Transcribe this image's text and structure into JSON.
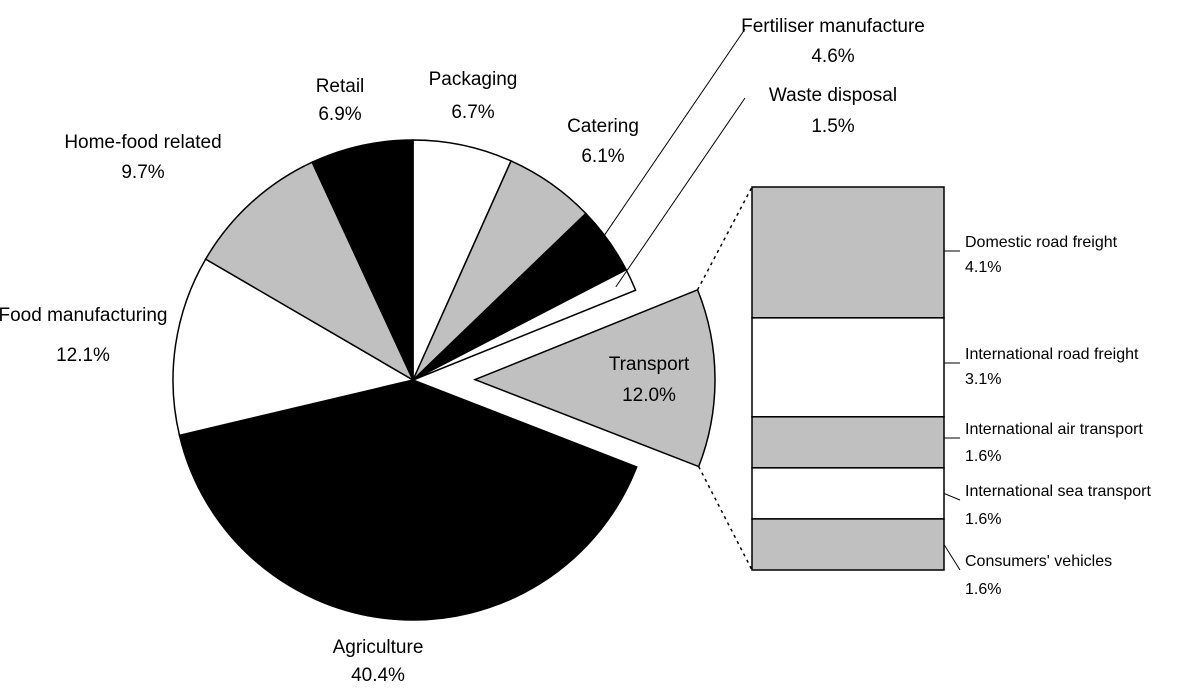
{
  "chart_data": {
    "type": "pie-of-bar",
    "categories": [
      "Packaging",
      "Catering",
      "Fertiliser manufacture",
      "Waste disposal",
      "Transport",
      "Agriculture",
      "Food manufacturing",
      "Home-food related",
      "Retail"
    ],
    "values": [
      6.7,
      6.1,
      4.6,
      1.5,
      12.0,
      40.4,
      12.1,
      9.7,
      6.9
    ],
    "value_labels": [
      "6.7%",
      "6.1%",
      "4.6%",
      "1.5%",
      "12.0%",
      "40.4%",
      "12.1%",
      "9.7%",
      "6.9%"
    ],
    "colors": [
      "#ffffff",
      "#c0c0c0",
      "#000000",
      "#ffffff",
      "#c0c0c0",
      "#000000",
      "#ffffff",
      "#c0c0c0",
      "#000000"
    ],
    "breakdown": {
      "of": "Transport",
      "categories": [
        "Domestic road freight",
        "International road freight",
        "International air transport",
        "International sea transport",
        "Consumers' vehicles"
      ],
      "values": [
        4.1,
        3.1,
        1.6,
        1.6,
        1.6
      ],
      "value_labels": [
        "4.1%",
        "3.1%",
        "1.6%",
        "1.6%",
        "1.6%"
      ],
      "colors": [
        "#c0c0c0",
        "#ffffff",
        "#c0c0c0",
        "#ffffff",
        "#c0c0c0"
      ]
    }
  }
}
